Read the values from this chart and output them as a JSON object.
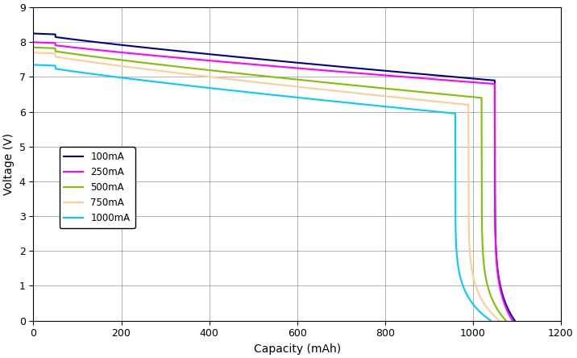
{
  "title": "",
  "xlabel": "Capacity (mAh)",
  "ylabel": "Voltage (V)",
  "xlim": [
    0,
    1200
  ],
  "ylim": [
    0,
    9
  ],
  "xticks": [
    0,
    200,
    400,
    600,
    800,
    1000,
    1200
  ],
  "yticks": [
    0,
    1,
    2,
    3,
    4,
    5,
    6,
    7,
    8,
    9
  ],
  "legend_labels": [
    "100mA",
    "250mA",
    "500mA",
    "750mA",
    "1000mA"
  ],
  "colors": [
    "#00008B",
    "#FF00FF",
    "#80C000",
    "#FFCC99",
    "#00CCFF"
  ],
  "line_widths": [
    1.5,
    1.5,
    1.5,
    1.5,
    1.5
  ],
  "figsize": [
    7.16,
    4.44
  ],
  "dpi": 100,
  "background_color": "#FFFFFF",
  "grid_color": "#000000",
  "grid_alpha": 0.3,
  "grid_linewidth": 0.7,
  "curves": [
    {
      "label": "100mA",
      "v_start": 8.25,
      "v_at_200": 8.05,
      "v_at_800": 7.1,
      "v_knee_start_cap": 1050,
      "v_knee_start_v": 6.9,
      "v_end_cap": 1095,
      "drop_steepness": 0.15
    },
    {
      "label": "250mA",
      "v_start": 8.0,
      "v_at_200": 7.85,
      "v_at_800": 7.0,
      "v_knee_start_cap": 1050,
      "v_knee_start_v": 6.8,
      "v_end_cap": 1090,
      "drop_steepness": 0.15
    },
    {
      "label": "500mA",
      "v_start": 7.85,
      "v_at_200": 7.65,
      "v_at_800": 6.85,
      "v_knee_start_cap": 1020,
      "v_knee_start_v": 6.4,
      "v_end_cap": 1075,
      "drop_steepness": 0.15
    },
    {
      "label": "750mA",
      "v_start": 7.7,
      "v_at_200": 7.45,
      "v_at_800": 6.55,
      "v_knee_start_cap": 990,
      "v_knee_start_v": 6.2,
      "v_end_cap": 1060,
      "drop_steepness": 0.15
    },
    {
      "label": "1000mA",
      "v_start": 7.35,
      "v_at_200": 7.05,
      "v_at_800": 6.2,
      "v_knee_start_cap": 960,
      "v_knee_start_v": 5.95,
      "v_end_cap": 1040,
      "drop_steepness": 0.15
    }
  ]
}
